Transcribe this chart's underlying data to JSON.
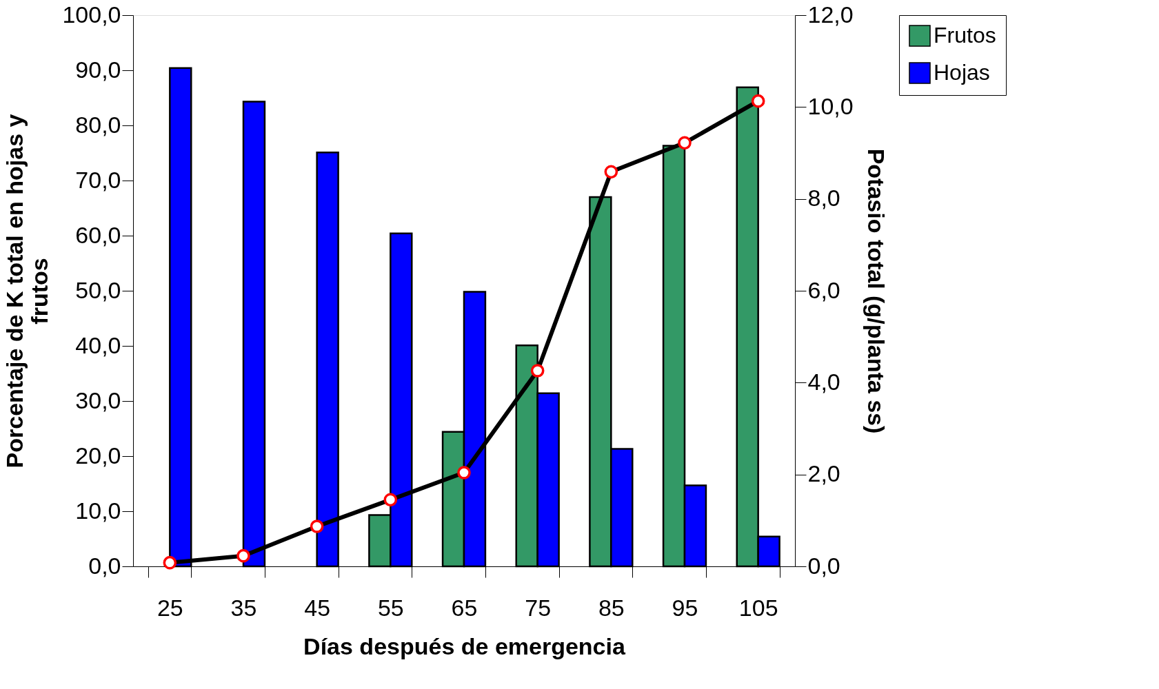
{
  "chart_data": {
    "type": "bar",
    "xlabel": "Días después de emergencia",
    "ylabel": "Porcentaje de K total en hojas y frutos",
    "y2label": "Potasio total (g/planta ss)",
    "categories": [
      "25",
      "35",
      "45",
      "55",
      "65",
      "75",
      "85",
      "95",
      "105"
    ],
    "series": [
      {
        "name": "Frutos",
        "color": "#339966",
        "values": [
          null,
          null,
          null,
          9.3,
          24.4,
          40.1,
          67.0,
          76.3,
          86.9
        ]
      },
      {
        "name": "Hojas",
        "color": "#0000ff",
        "values": [
          90.4,
          84.3,
          75.1,
          60.4,
          49.8,
          31.4,
          21.3,
          14.7,
          5.4
        ]
      },
      {
        "type": "line",
        "axis": "y2",
        "color": "#000000",
        "marker": "circle",
        "line_style": "solid",
        "values": [
          0.08,
          0.23,
          0.87,
          1.45,
          2.04,
          4.26,
          8.59,
          9.22,
          10.13
        ]
      }
    ],
    "ylim": [
      0,
      100
    ],
    "yticks": [
      {
        "value": 0,
        "label": "0,0"
      },
      {
        "value": 10,
        "label": "10,0"
      },
      {
        "value": 20,
        "label": "20,0"
      },
      {
        "value": 30,
        "label": "30,0"
      },
      {
        "value": 40,
        "label": "40,0"
      },
      {
        "value": 50,
        "label": "50,0"
      },
      {
        "value": 60,
        "label": "60,0"
      },
      {
        "value": 70,
        "label": "70,0"
      },
      {
        "value": 80,
        "label": "80,0"
      },
      {
        "value": 90,
        "label": "90,0"
      },
      {
        "value": 100,
        "label": "100,0"
      }
    ],
    "y2lim": [
      0,
      12
    ],
    "y2ticks": [
      {
        "value": 0,
        "label": "0,0"
      },
      {
        "value": 2,
        "label": "2,0"
      },
      {
        "value": 4,
        "label": "4,0"
      },
      {
        "value": 6,
        "label": "6,0"
      },
      {
        "value": 8,
        "label": "8,0"
      },
      {
        "value": 10,
        "label": "10,0"
      },
      {
        "value": 12,
        "label": "12,0"
      }
    ],
    "grid": false,
    "legend": "right"
  }
}
